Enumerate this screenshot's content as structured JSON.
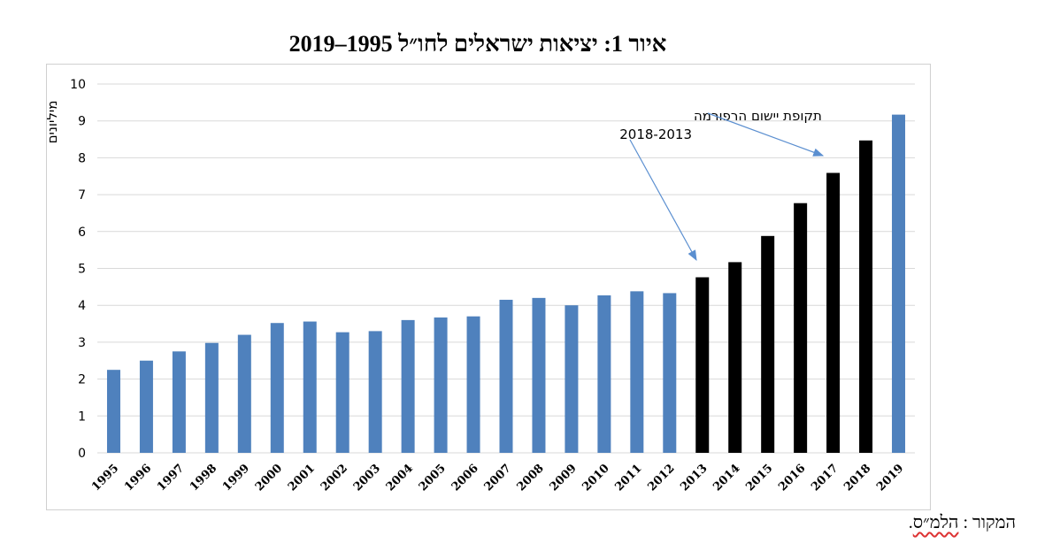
{
  "title": "איור 1: יציאות ישראלים לחו״ל 1995–2019",
  "source": {
    "label": "המקור :",
    "name": "הלמ״ס",
    "suffix": "."
  },
  "colors": {
    "regular": "#4f81bd",
    "reform": "#000000",
    "grid": "#d9d9d9",
    "arrow": "#5b8fd0"
  },
  "chart_data": {
    "type": "bar",
    "ylabel": "מיליונים",
    "ylim": [
      0,
      10
    ],
    "yticks": [
      0,
      1,
      2,
      3,
      4,
      5,
      6,
      7,
      8,
      9,
      10
    ],
    "grid": true,
    "categories": [
      "1995",
      "1996",
      "1997",
      "1998",
      "1999",
      "2000",
      "2001",
      "2002",
      "2003",
      "2004",
      "2005",
      "2006",
      "2007",
      "2008",
      "2009",
      "2010",
      "2011",
      "2012",
      "2013",
      "2014",
      "2015",
      "2016",
      "2017",
      "2018",
      "2019"
    ],
    "values": [
      2.25,
      2.5,
      2.75,
      2.98,
      3.2,
      3.52,
      3.56,
      3.27,
      3.3,
      3.6,
      3.67,
      3.7,
      4.15,
      4.2,
      4.0,
      4.27,
      4.38,
      4.33,
      4.76,
      5.17,
      5.88,
      6.77,
      7.59,
      8.47,
      9.17
    ],
    "highlight_years": [
      "2013",
      "2014",
      "2015",
      "2016",
      "2017",
      "2018"
    ],
    "annotation": {
      "line1": "תקופת יישום הרפורמה",
      "line2": "2018-2013"
    }
  }
}
